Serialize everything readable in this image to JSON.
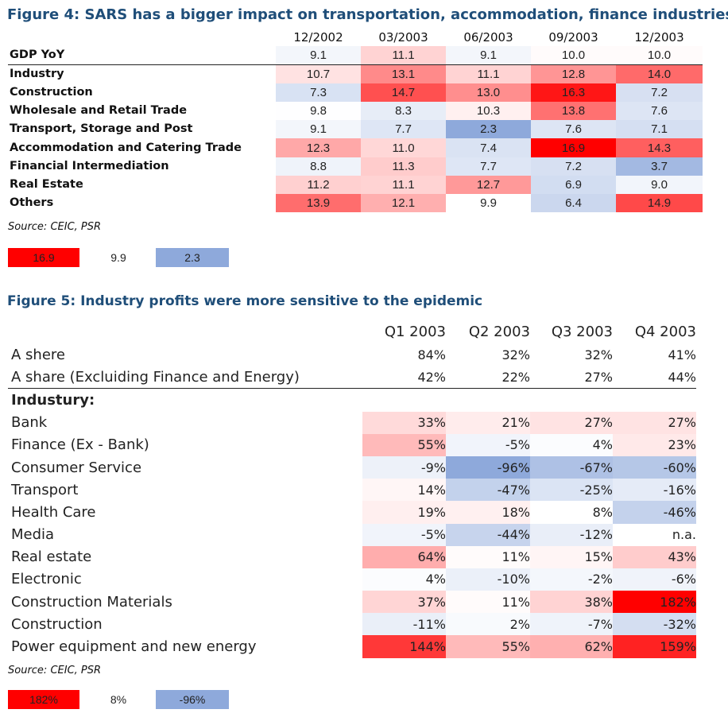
{
  "figure4": {
    "title": "Figure 4: SARS has a bigger impact on transportation, accommodation, finance industries",
    "columns": [
      "12/2002",
      "03/2003",
      "06/2003",
      "09/2003",
      "12/2003"
    ],
    "rows": [
      {
        "label": "GDP YoY",
        "values": [
          "9.1",
          "11.1",
          "9.1",
          "10.0",
          "10.0"
        ]
      },
      {
        "label": "Industry",
        "values": [
          "10.7",
          "13.1",
          "11.1",
          "12.8",
          "14.0"
        ]
      },
      {
        "label": "Construction",
        "values": [
          "7.3",
          "14.7",
          "13.0",
          "16.3",
          "7.2"
        ]
      },
      {
        "label": "Wholesale and Retail Trade",
        "values": [
          "9.8",
          "8.3",
          "10.3",
          "13.8",
          "7.6"
        ]
      },
      {
        "label": "Transport, Storage and Post",
        "values": [
          "9.1",
          "7.7",
          "2.3",
          "7.6",
          "7.1"
        ]
      },
      {
        "label": "Accommodation and Catering Trade",
        "values": [
          "12.3",
          "11.0",
          "7.4",
          "16.9",
          "14.3"
        ]
      },
      {
        "label": "Financial Intermediation",
        "values": [
          "8.8",
          "11.3",
          "7.7",
          "7.2",
          "3.7"
        ]
      },
      {
        "label": "Real Estate",
        "values": [
          "11.2",
          "11.1",
          "12.7",
          "6.9",
          "9.0"
        ]
      },
      {
        "label": "Others",
        "values": [
          "13.9",
          "12.1",
          "9.9",
          "6.4",
          "14.9"
        ]
      }
    ],
    "source": "Source: CEIC, PSR",
    "legend": {
      "high": "16.9",
      "mid": "9.9",
      "low": "2.3"
    },
    "scale": {
      "low": 2.3,
      "mid": 9.9,
      "high": 16.9
    }
  },
  "figure5": {
    "title": "Figure 5: Industry profits were more sensitive to the epidemic",
    "columns": [
      "Q1 2003",
      "Q2 2003",
      "Q3 2003",
      "Q4 2003"
    ],
    "rows": [
      {
        "label": "A shere",
        "values": [
          "84%",
          "32%",
          "32%",
          "41%"
        ]
      },
      {
        "label": "A share (Excluiding Finance and Energy)",
        "values": [
          "42%",
          "22%",
          "27%",
          "44%"
        ]
      },
      {
        "label": "Industury:",
        "values": [
          "",
          "",
          "",
          ""
        ]
      },
      {
        "label": "Bank",
        "values": [
          "33%",
          "21%",
          "27%",
          "27%"
        ]
      },
      {
        "label": "Finance (Ex - Bank)",
        "values": [
          "55%",
          "-5%",
          "4%",
          "23%"
        ]
      },
      {
        "label": "Consumer Service",
        "values": [
          "-9%",
          "-96%",
          "-67%",
          "-60%"
        ]
      },
      {
        "label": "Transport",
        "values": [
          "14%",
          "-47%",
          "-25%",
          "-16%"
        ]
      },
      {
        "label": "Health Care",
        "values": [
          "19%",
          "18%",
          "8%",
          "-46%"
        ]
      },
      {
        "label": "Media",
        "values": [
          "-5%",
          "-44%",
          "-12%",
          "n.a."
        ]
      },
      {
        "label": "Real estate",
        "values": [
          "64%",
          "11%",
          "15%",
          "43%"
        ]
      },
      {
        "label": "Electronic",
        "values": [
          "4%",
          "-10%",
          "-2%",
          "-6%"
        ]
      },
      {
        "label": "Construction Materials",
        "values": [
          "37%",
          "11%",
          "38%",
          "182%"
        ]
      },
      {
        "label": "Construction",
        "values": [
          "-11%",
          "2%",
          "-7%",
          "-32%"
        ]
      },
      {
        "label": "Power equipment and new energy",
        "values": [
          "144%",
          "55%",
          "62%",
          "159%"
        ]
      }
    ],
    "source": "Source: CEIC, PSR",
    "legend": {
      "high": "182%",
      "mid": "8%",
      "low": "-96%"
    },
    "scale": {
      "low": -96,
      "mid": 8,
      "high": 182
    }
  },
  "colors": {
    "high": "#ff0000",
    "mid": "#ffffff",
    "low": "#8ea9db"
  }
}
